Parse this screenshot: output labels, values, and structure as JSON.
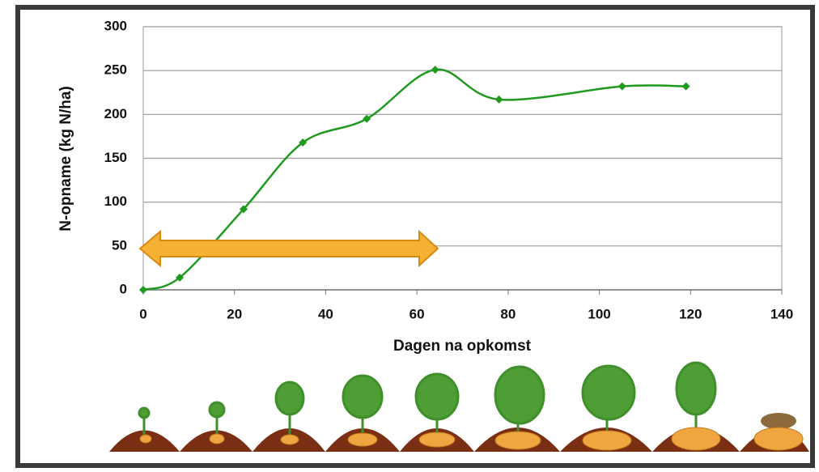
{
  "chart_data": {
    "type": "line",
    "x": [
      0,
      8,
      22,
      35,
      49,
      64,
      78,
      105,
      119
    ],
    "series": [
      {
        "color": "#1f9a1f",
        "values": [
          0,
          14,
          92,
          168,
          195,
          251,
          217,
          232,
          232
        ]
      }
    ],
    "xlabel": "Dagen na opkomst",
    "ylabel": "N-opname (kg N/ha)",
    "xlim": [
      0,
      140
    ],
    "xticks": [
      0,
      20,
      40,
      60,
      80,
      100,
      120,
      140
    ],
    "ylim": [
      0,
      300
    ],
    "yticks": [
      0,
      50,
      100,
      150,
      200,
      250,
      300
    ],
    "grid": true,
    "smooth": true
  }
}
